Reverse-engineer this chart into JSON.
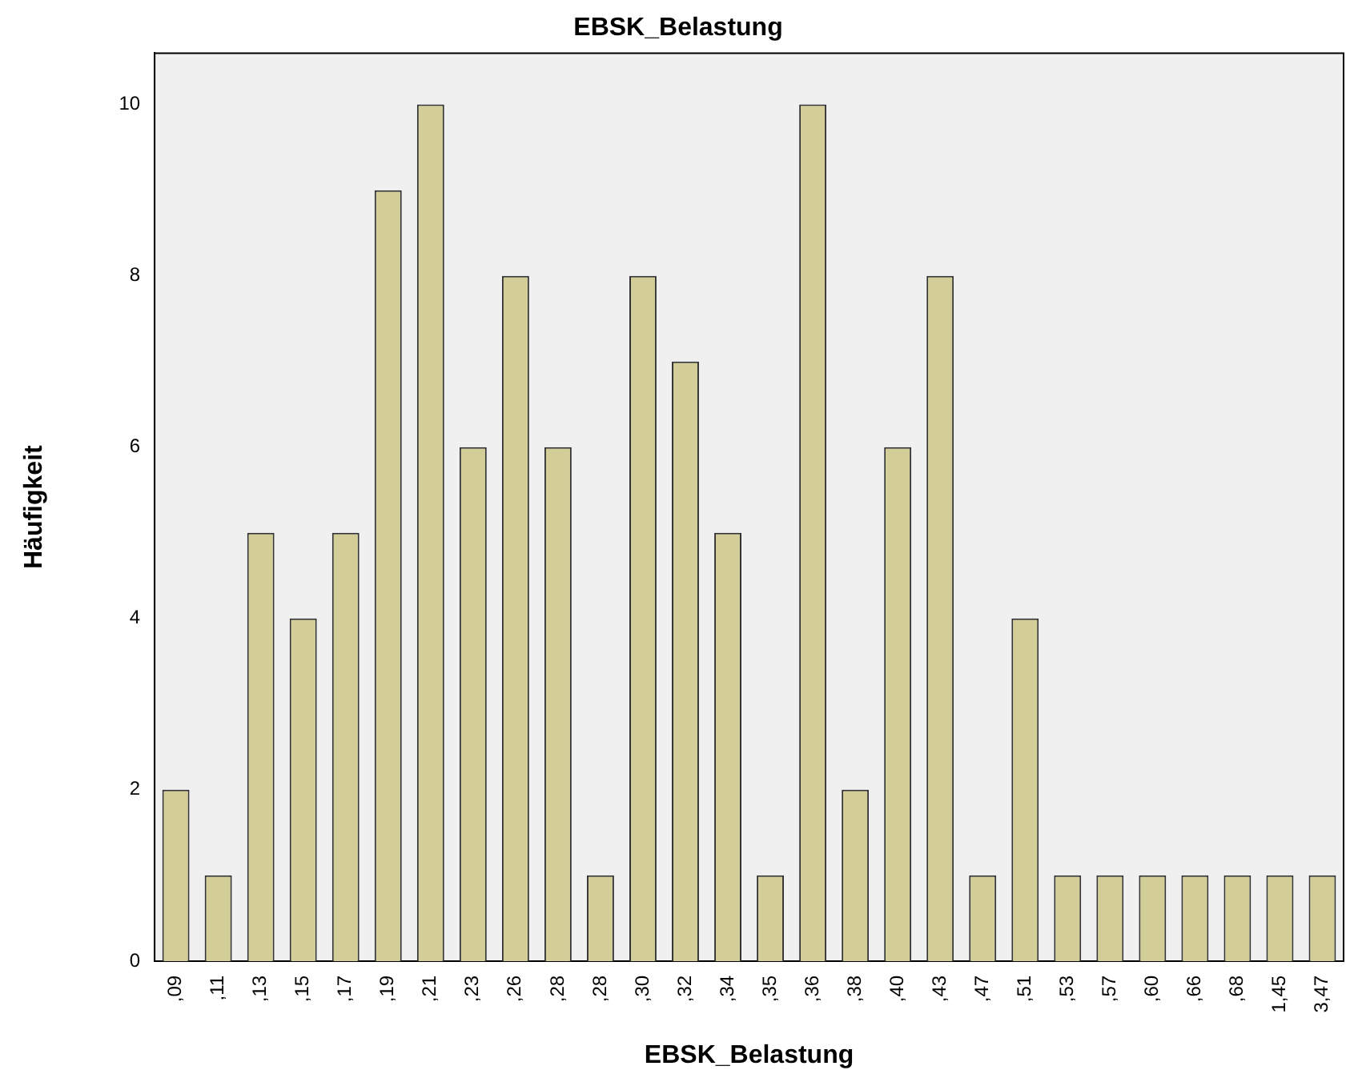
{
  "chart_data": {
    "type": "bar",
    "title": "EBSK_Belastung",
    "xlabel": "EBSK_Belastung",
    "ylabel": "Häufigkeit",
    "categories": [
      ",09",
      ",11",
      ",13",
      ",15",
      ",17",
      ",19",
      ",21",
      ",23",
      ",26",
      ",28",
      ",28",
      ",30",
      ",32",
      ",34",
      ",35",
      ",36",
      ",38",
      ",40",
      ",43",
      ",47",
      ",51",
      ",53",
      ",57",
      ",60",
      ",66",
      ",68",
      "1,45",
      "3,47"
    ],
    "values": [
      2,
      1,
      5,
      4,
      5,
      9,
      10,
      6,
      8,
      6,
      1,
      8,
      7,
      5,
      1,
      10,
      2,
      6,
      8,
      1,
      4,
      1,
      1,
      1,
      1,
      1,
      1,
      1
    ],
    "color": "#d3ce97",
    "ylim": [
      0,
      10.6
    ],
    "yticks": [
      0,
      2,
      4,
      6,
      8,
      10
    ],
    "grid": false,
    "legend": false
  }
}
